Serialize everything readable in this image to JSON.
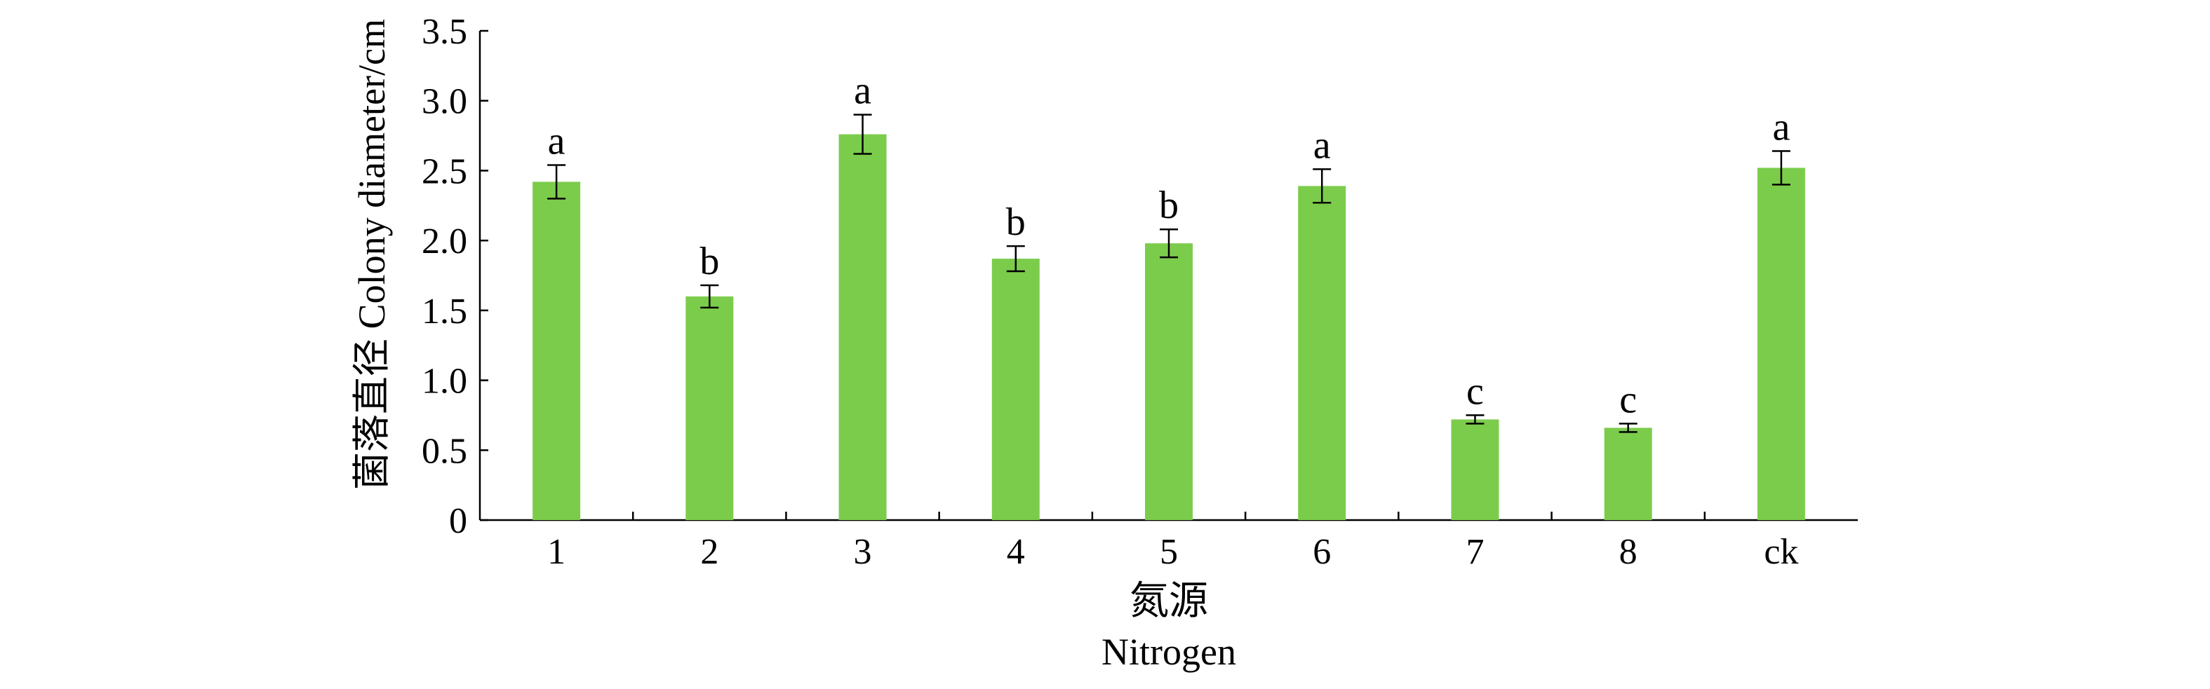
{
  "chart_data": {
    "type": "bar",
    "categories": [
      "1",
      "2",
      "3",
      "4",
      "5",
      "6",
      "7",
      "8",
      "ck"
    ],
    "values": [
      2.42,
      1.6,
      2.76,
      1.87,
      1.98,
      2.39,
      0.72,
      0.66,
      2.52
    ],
    "error": [
      0.12,
      0.08,
      0.14,
      0.09,
      0.1,
      0.12,
      0.03,
      0.03,
      0.12
    ],
    "significance": [
      "a",
      "b",
      "a",
      "b",
      "b",
      "a",
      "c",
      "c",
      "a"
    ],
    "xlabel": "氮源",
    "xlabel_en": "Nitrogen",
    "ylabel": "菌落直径 Colony diameter/cm",
    "ylim": [
      0,
      3.5
    ],
    "yticks": [
      0,
      0.5,
      1.0,
      1.5,
      2.0,
      2.5,
      3.0,
      3.5
    ],
    "ytick_labels": [
      "0",
      "0.5",
      "1.0",
      "1.5",
      "2.0",
      "2.5",
      "3.0",
      "3.5"
    ],
    "grid": false,
    "legend": "none",
    "bar_color": "#7ccc4c"
  }
}
